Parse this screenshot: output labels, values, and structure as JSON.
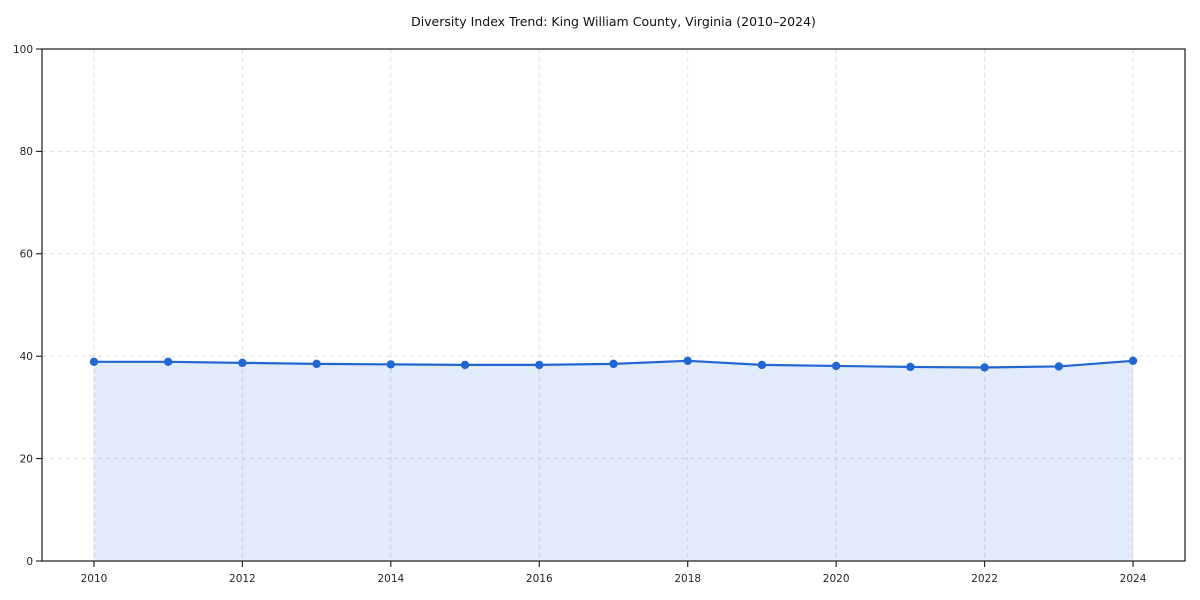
{
  "chart_data": {
    "type": "area",
    "title": "Diversity Index Trend: King William County, Virginia (2010–2024)",
    "x": [
      2010,
      2011,
      2012,
      2013,
      2014,
      2015,
      2016,
      2017,
      2018,
      2019,
      2020,
      2021,
      2022,
      2023,
      2024
    ],
    "series": [
      {
        "name": "Diversity Index",
        "values": [
          38.9,
          38.9,
          38.7,
          38.5,
          38.4,
          38.3,
          38.3,
          38.5,
          39.1,
          38.3,
          38.1,
          37.9,
          37.8,
          38.0,
          39.1
        ]
      }
    ],
    "xlabel": "",
    "ylabel": "",
    "xlim": [
      2009.3,
      2024.7
    ],
    "ylim": [
      0,
      100
    ],
    "x_ticks": [
      2010,
      2012,
      2014,
      2016,
      2018,
      2020,
      2022,
      2024
    ],
    "y_ticks": [
      0,
      20,
      40,
      60,
      80,
      100
    ],
    "grid": "dashed-both",
    "legend": "none",
    "marker": "circle",
    "colors": {
      "line": "#2266d3",
      "marker": "#2266d3",
      "area_fill": "rgba(34, 102, 211, 0.13)",
      "gridline": "#dcdcdc",
      "spine": "#1a1a1a",
      "tick_text": "#262626",
      "title_text": "#111111",
      "background": "#ffffff"
    }
  }
}
